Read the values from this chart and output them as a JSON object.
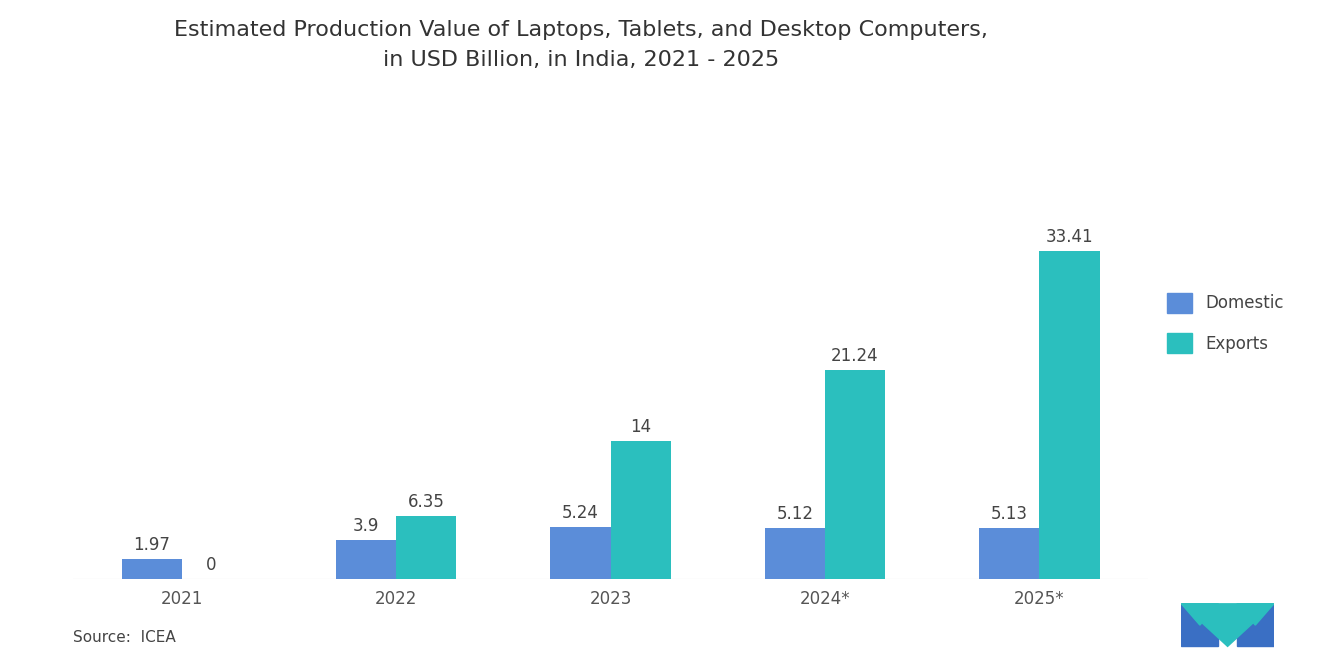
{
  "title_line1": "Estimated Production Value of Laptops, Tablets, and Desktop Computers,",
  "title_line2": "in USD Billion, in India, 2021 - 2025",
  "categories": [
    "2021",
    "2022",
    "2023",
    "2024*",
    "2025*"
  ],
  "domestic_values": [
    1.97,
    3.9,
    5.24,
    5.12,
    5.13
  ],
  "exports_values": [
    0,
    6.35,
    14,
    21.24,
    33.41
  ],
  "domestic_color": "#5b8dd9",
  "exports_color": "#2bbfbe",
  "background_color": "#FFFFFF",
  "bar_width": 0.28,
  "ylim": [
    0,
    40
  ],
  "source_text": "Source:  ICEA",
  "legend_labels": [
    "Domestic",
    "Exports"
  ],
  "title_fontsize": 16,
  "label_fontsize": 12,
  "tick_fontsize": 12,
  "source_fontsize": 11,
  "annotation_fontsize": 12
}
